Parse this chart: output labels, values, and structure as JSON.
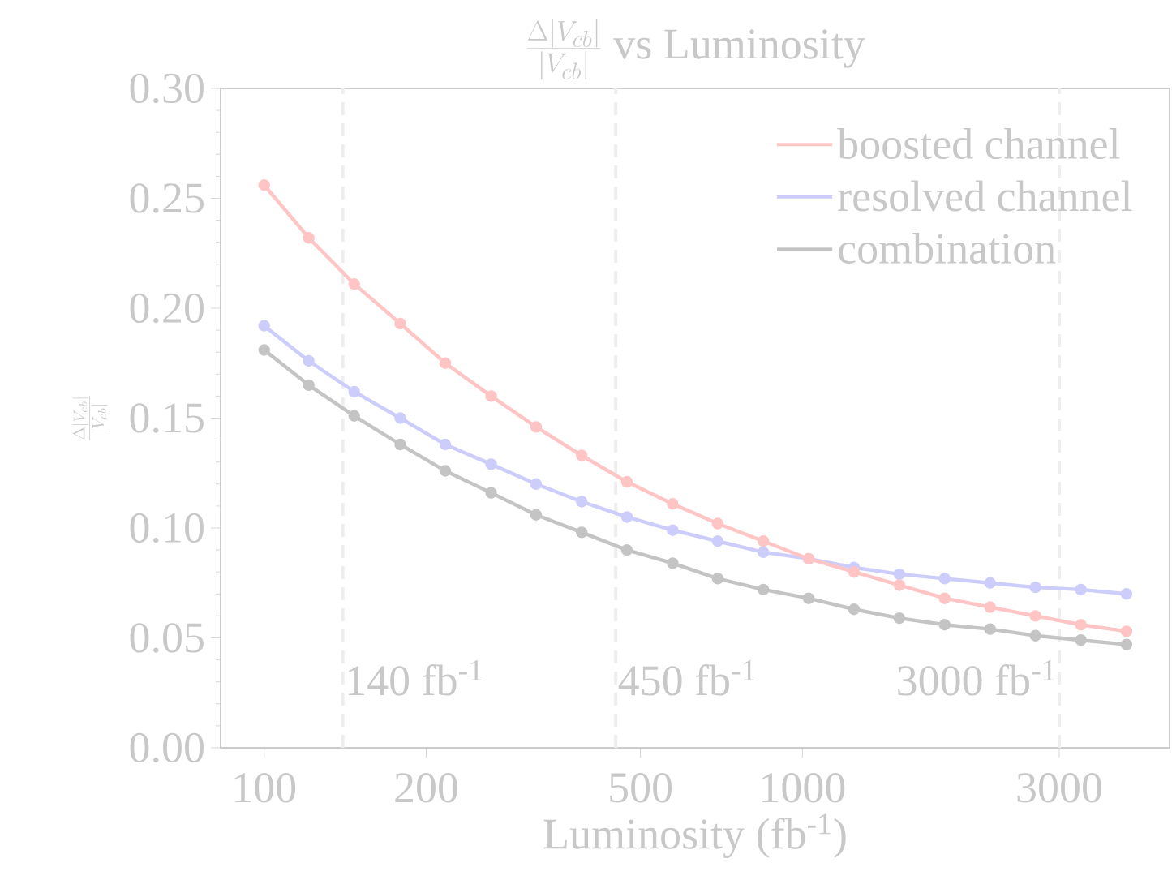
{
  "chart_data": {
    "type": "line",
    "title": "\\frac{\\Delta|V_{cb}|}{|V_{cb}|}\\ \\mathrm{vs\\ Luminosity}",
    "xlabel": "Luminosity (fb$^{-1}$)",
    "ylabel": "\\frac{\\Delta|V_{cb}|}{|V_{cb}|}",
    "x": [
      100,
      121,
      147,
      179,
      217,
      264,
      320,
      389,
      472,
      574,
      696,
      846,
      1027,
      1247,
      1514,
      1838,
      2232,
      2710,
      3291,
      4000
    ],
    "series": [
      {
        "name": "boosted channel",
        "color": "#ffc4c4",
        "values": [
          0.256,
          0.232,
          0.211,
          0.193,
          0.175,
          0.16,
          0.146,
          0.133,
          0.121,
          0.111,
          0.102,
          0.094,
          0.086,
          0.08,
          0.074,
          0.068,
          0.064,
          0.06,
          0.056,
          0.053
        ]
      },
      {
        "name": "resolved channel",
        "color": "#cdcdfc",
        "values": [
          0.192,
          0.176,
          0.162,
          0.15,
          0.138,
          0.129,
          0.12,
          0.112,
          0.105,
          0.099,
          0.094,
          0.089,
          0.086,
          0.082,
          0.079,
          0.077,
          0.075,
          0.073,
          0.072,
          0.07
        ]
      },
      {
        "name": "combination",
        "color": "#c4c4c4",
        "values": [
          0.181,
          0.165,
          0.151,
          0.138,
          0.126,
          0.116,
          0.106,
          0.098,
          0.09,
          0.084,
          0.077,
          0.072,
          0.068,
          0.063,
          0.059,
          0.056,
          0.054,
          0.051,
          0.049,
          0.047
        ]
      }
    ],
    "log": "x",
    "xlim": [
      83,
      4810
    ],
    "xticks": [
      100,
      200,
      500,
      1000,
      3000
    ],
    "ylim": [
      0,
      0.3
    ],
    "yticks": [
      {
        "value": 0,
        "label": "0.00"
      },
      {
        "value": 0.05,
        "label": "0.05"
      },
      {
        "value": 0.1,
        "label": "0.10"
      },
      {
        "value": 0.15,
        "label": "0.15"
      },
      {
        "value": 0.2,
        "label": "0.20"
      },
      {
        "value": 0.25,
        "label": "0.25"
      },
      {
        "value": 0.3,
        "label": "0.30"
      }
    ],
    "ref_lines": [
      {
        "axis": "x",
        "value": 140,
        "label": "140 fb$^{-1}$",
        "color": "#eeeeee",
        "line_style": "dashed"
      },
      {
        "axis": "x",
        "value": 450,
        "label": "450 fb$^{-1}$",
        "color": "#eeeeee",
        "line_style": "dashed"
      },
      {
        "axis": "x",
        "value": 3000,
        "label": "3000 fb$^{-1}$",
        "color": "#eeeeee",
        "line_style": "dashed"
      }
    ],
    "legend": "top right",
    "marker": "circle",
    "line_style": "solid"
  }
}
